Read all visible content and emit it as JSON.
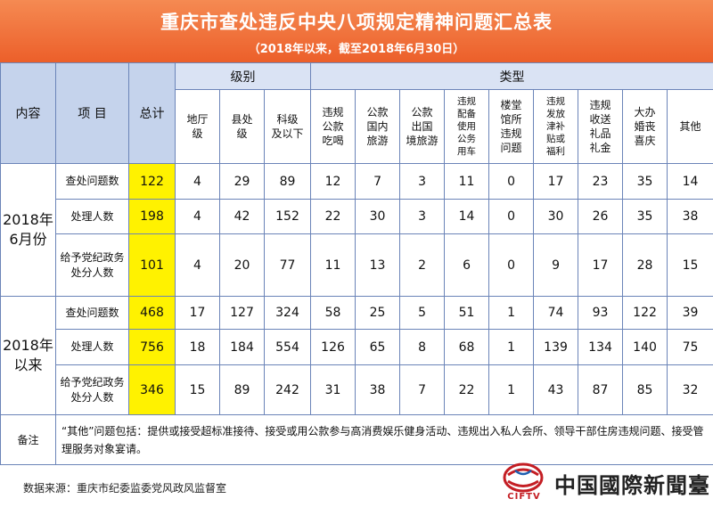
{
  "header": {
    "title": "重庆市查处违反中央八项规定精神问题汇总表",
    "subtitle": "（2018年以来，截至2018年6月30日）"
  },
  "table": {
    "col_content": "内容",
    "col_item": "项 目",
    "col_total": "总计",
    "group_level": "级别",
    "group_type": "类型",
    "levels": [
      "地厅\n级",
      "县处\n级",
      "科级\n及以下"
    ],
    "types": [
      "违规\n公款\n吃喝",
      "公款\n国内\n旅游",
      "公款\n出国\n境旅游",
      "违规\n配备\n使用\n公务\n用车",
      "楼堂\n馆所\n违规\n问题",
      "违规\n发放\n津补\n贴或\n福利",
      "违规\n收送\n礼品\n礼金",
      "大办\n婚丧\n喜庆",
      "其他"
    ],
    "groups": [
      {
        "label": "2018年\n6月份",
        "rows": [
          {
            "item": "查处问题数",
            "total": "122",
            "levels": [
              "4",
              "29",
              "89"
            ],
            "types": [
              "12",
              "7",
              "3",
              "11",
              "0",
              "17",
              "23",
              "35",
              "14"
            ]
          },
          {
            "item": "处理人数",
            "total": "198",
            "levels": [
              "4",
              "42",
              "152"
            ],
            "types": [
              "22",
              "30",
              "3",
              "14",
              "0",
              "30",
              "26",
              "35",
              "38"
            ]
          },
          {
            "item": "给予党纪政务\n处分人数",
            "total": "101",
            "levels": [
              "4",
              "20",
              "77"
            ],
            "types": [
              "11",
              "13",
              "2",
              "6",
              "0",
              "9",
              "17",
              "28",
              "15"
            ]
          }
        ]
      },
      {
        "label": "2018年\n以来",
        "rows": [
          {
            "item": "查处问题数",
            "total": "468",
            "levels": [
              "17",
              "127",
              "324"
            ],
            "types": [
              "58",
              "25",
              "5",
              "51",
              "1",
              "74",
              "93",
              "122",
              "39"
            ]
          },
          {
            "item": "处理人数",
            "total": "756",
            "levels": [
              "18",
              "184",
              "554"
            ],
            "types": [
              "126",
              "65",
              "8",
              "68",
              "1",
              "139",
              "134",
              "140",
              "75"
            ]
          },
          {
            "item": "给予党纪政务\n处分人数",
            "total": "346",
            "levels": [
              "15",
              "89",
              "242"
            ],
            "types": [
              "31",
              "38",
              "7",
              "22",
              "1",
              "43",
              "87",
              "85",
              "32"
            ]
          }
        ]
      }
    ],
    "note_label": "备注",
    "note_text": "“其他”问题包括：提供或接受超标准接待、接受或用公款参与高消费娱乐健身活动、违规出入私人会所、领导干部住房违规问题、接受管理服务对象宴请。"
  },
  "footer": {
    "source": "数据来源：重庆市纪委监委党风政风监督室",
    "logo_en": "CIFTV",
    "logo_cn": "中国國際新聞臺",
    "logo_icon": "cftv-globe-logo-icon"
  },
  "colors": {
    "header_bg": "#ec5f2a",
    "header_blue": "#c5d3ec",
    "total_highlight": "#fff200",
    "border": "#6b84b8",
    "logo_red": "#c41e24"
  }
}
